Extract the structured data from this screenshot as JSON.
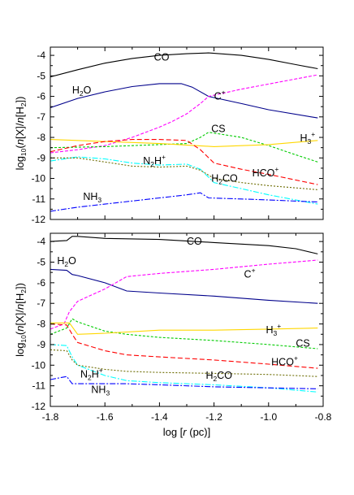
{
  "chart_data": [
    {
      "type": "line",
      "panel": "top",
      "xlabel": "",
      "ylabel": "log10(n[X]/n[H2])",
      "xlim": [
        -1.8,
        -0.8
      ],
      "ylim": [
        -12,
        -3.6
      ],
      "x_ticks": [
        -1.8,
        -1.6,
        -1.4,
        -1.2,
        -1.0,
        -0.8
      ],
      "y_ticks": [
        -12,
        -11,
        -10,
        -9,
        -8,
        -7,
        -6,
        -5,
        -4
      ],
      "x_tick_labels": [
        "",
        "",
        "",
        "",
        "",
        ""
      ],
      "y_tick_labels": [
        "-12",
        "-11",
        "-10",
        "-9",
        "-8",
        "-7",
        "-6",
        "-5",
        "-4"
      ],
      "series": [
        {
          "name": "CO",
          "color": "#000000",
          "dash": "",
          "x": [
            -1.8,
            -1.7,
            -1.6,
            -1.5,
            -1.4,
            -1.3,
            -1.22,
            -1.1,
            -1.0,
            -0.9,
            -0.82
          ],
          "y": [
            -5.05,
            -4.7,
            -4.38,
            -4.15,
            -4.0,
            -3.92,
            -3.88,
            -4.0,
            -4.2,
            -4.45,
            -4.65
          ]
        },
        {
          "name": "H2O",
          "color": "#00008b",
          "dash": "",
          "x": [
            -1.8,
            -1.7,
            -1.6,
            -1.5,
            -1.4,
            -1.32,
            -1.28,
            -1.22,
            -1.1,
            -1.0,
            -0.82
          ],
          "y": [
            -6.55,
            -6.1,
            -5.78,
            -5.52,
            -5.38,
            -5.38,
            -5.55,
            -6.0,
            -6.35,
            -6.65,
            -7.05
          ]
        },
        {
          "name": "C+",
          "color": "#ff00ff",
          "dash": "4,2",
          "x": [
            -1.8,
            -1.7,
            -1.6,
            -1.5,
            -1.4,
            -1.35,
            -1.3,
            -1.25,
            -1.22,
            -1.1,
            -1.0,
            -0.9,
            -0.82
          ],
          "y": [
            -8.75,
            -8.6,
            -8.4,
            -8.0,
            -7.5,
            -7.2,
            -6.85,
            -6.35,
            -6.0,
            -5.65,
            -5.4,
            -5.15,
            -4.95
          ]
        },
        {
          "name": "CS",
          "color": "#00cc00",
          "dash": "3,2",
          "x": [
            -1.8,
            -1.6,
            -1.4,
            -1.3,
            -1.25,
            -1.22,
            -1.1,
            -1.0,
            -0.9,
            -0.82
          ],
          "y": [
            -8.5,
            -8.45,
            -8.35,
            -8.3,
            -8.0,
            -7.75,
            -8.0,
            -8.4,
            -8.85,
            -9.2
          ]
        },
        {
          "name": "H3+",
          "color": "#ffd700",
          "dash": "",
          "x": [
            -1.8,
            -1.6,
            -1.4,
            -1.2,
            -1.0,
            -0.82
          ],
          "y": [
            -8.1,
            -8.2,
            -8.3,
            -8.45,
            -8.35,
            -8.15
          ]
        },
        {
          "name": "HCO+",
          "color": "#ff0000",
          "dash": "6,3",
          "x": [
            -1.8,
            -1.7,
            -1.6,
            -1.5,
            -1.4,
            -1.3,
            -1.25,
            -1.2,
            -1.1,
            -1.0,
            -0.82
          ],
          "y": [
            -8.7,
            -8.4,
            -8.2,
            -8.1,
            -8.1,
            -8.15,
            -8.6,
            -9.25,
            -9.55,
            -9.8,
            -10.3
          ]
        },
        {
          "name": "N2H+",
          "color": "#00ffff",
          "dash": "7,2,2,2",
          "x": [
            -1.8,
            -1.7,
            -1.6,
            -1.5,
            -1.4,
            -1.3,
            -1.25,
            -1.2,
            -1.1,
            -1.0,
            -0.82
          ],
          "y": [
            -9.15,
            -8.95,
            -9.05,
            -9.25,
            -9.35,
            -9.3,
            -9.55,
            -10.2,
            -10.5,
            -10.8,
            -11.25
          ]
        },
        {
          "name": "H2CO",
          "color": "#6b6b00",
          "dash": "2,2",
          "x": [
            -1.8,
            -1.7,
            -1.6,
            -1.5,
            -1.4,
            -1.3,
            -1.25,
            -1.2,
            -1.1,
            -1.0,
            -0.82
          ],
          "y": [
            -9.0,
            -9.0,
            -9.2,
            -9.4,
            -9.45,
            -9.4,
            -9.6,
            -10.0,
            -10.2,
            -10.35,
            -10.55
          ]
        },
        {
          "name": "NH3",
          "color": "#0000ff",
          "dash": "7,2,2,2",
          "x": [
            -1.8,
            -1.7,
            -1.6,
            -1.5,
            -1.4,
            -1.3,
            -1.25,
            -1.22,
            -1.1,
            -1.0,
            -0.82
          ],
          "y": [
            -11.6,
            -11.4,
            -11.25,
            -11.1,
            -10.95,
            -10.8,
            -10.7,
            -10.95,
            -11.0,
            -11.05,
            -11.15
          ]
        }
      ],
      "labels": [
        {
          "series": "CO",
          "text": "CO",
          "sup": "",
          "sub": "",
          "x": -1.42,
          "y": -4.25
        },
        {
          "series": "H2O",
          "text": "H",
          "sub": "2",
          "tail": "O",
          "x": -1.72,
          "y": -5.85
        },
        {
          "series": "C+",
          "text": "C",
          "sup": "+",
          "x": -1.2,
          "y": -6.15
        },
        {
          "series": "CS",
          "text": "CS",
          "x": -1.21,
          "y": -7.75
        },
        {
          "series": "H3+",
          "text": "H",
          "sub": "3",
          "sup": "+",
          "x": -0.885,
          "y": -8.2
        },
        {
          "series": "N2H+",
          "text": "N",
          "sub": "2",
          "tail": "H",
          "sup": "+",
          "x": -1.46,
          "y": -9.3
        },
        {
          "series": "H2CO",
          "text": "H",
          "sub": "2",
          "tail": "CO",
          "x": -1.21,
          "y": -10.15
        },
        {
          "series": "HCO+",
          "text": "HCO",
          "sup": "+",
          "x": -1.06,
          "y": -9.9
        },
        {
          "series": "NH3",
          "text": "NH",
          "sub": "3",
          "x": -1.68,
          "y": -11.05
        }
      ]
    },
    {
      "type": "line",
      "panel": "bottom",
      "xlabel": "log [r (pc)]",
      "ylabel": "log10(n[X]/n[H2])",
      "xlim": [
        -1.8,
        -0.8
      ],
      "ylim": [
        -12,
        -3.6
      ],
      "x_ticks": [
        -1.8,
        -1.6,
        -1.4,
        -1.2,
        -1.0,
        -0.8
      ],
      "y_ticks": [
        -12,
        -11,
        -10,
        -9,
        -8,
        -7,
        -6,
        -5,
        -4
      ],
      "x_tick_labels": [
        "-1.8",
        "-1.6",
        "-1.4",
        "-1.2",
        "-1.0",
        "-0.8"
      ],
      "y_tick_labels": [
        "-12",
        "-11",
        "-10",
        "-9",
        "-8",
        "-7",
        "-6",
        "-5",
        "-4"
      ],
      "series": [
        {
          "name": "CO",
          "color": "#000000",
          "dash": "",
          "x": [
            -1.8,
            -1.74,
            -1.72,
            -1.7,
            -1.6,
            -1.4,
            -1.2,
            -1.0,
            -0.9,
            -0.82
          ],
          "y": [
            -4.0,
            -3.95,
            -3.75,
            -3.75,
            -3.85,
            -3.9,
            -4.05,
            -4.2,
            -4.35,
            -4.6
          ]
        },
        {
          "name": "H2O",
          "color": "#00008b",
          "dash": "",
          "x": [
            -1.8,
            -1.74,
            -1.72,
            -1.7,
            -1.6,
            -1.52,
            -1.4,
            -1.2,
            -1.0,
            -0.82
          ],
          "y": [
            -5.35,
            -5.4,
            -5.6,
            -5.65,
            -6.0,
            -6.4,
            -6.5,
            -6.65,
            -6.85,
            -7.0
          ]
        },
        {
          "name": "C+",
          "color": "#ff00ff",
          "dash": "4,2",
          "x": [
            -1.8,
            -1.75,
            -1.73,
            -1.7,
            -1.6,
            -1.52,
            -1.4,
            -1.2,
            -1.0,
            -0.82
          ],
          "y": [
            -8.25,
            -8.0,
            -7.4,
            -6.9,
            -6.3,
            -5.7,
            -5.55,
            -5.35,
            -5.1,
            -4.9
          ]
        },
        {
          "name": "CS",
          "color": "#00cc00",
          "dash": "3,2",
          "x": [
            -1.8,
            -1.74,
            -1.72,
            -1.7,
            -1.6,
            -1.52,
            -1.4,
            -1.2,
            -1.0,
            -0.82
          ],
          "y": [
            -8.5,
            -8.2,
            -7.75,
            -7.9,
            -8.35,
            -8.5,
            -8.65,
            -8.8,
            -9.0,
            -9.2
          ]
        },
        {
          "name": "H3+",
          "color": "#ffd700",
          "dash": "",
          "x": [
            -1.8,
            -1.73,
            -1.7,
            -1.6,
            -1.4,
            -1.2,
            -1.0,
            -0.82
          ],
          "y": [
            -7.95,
            -7.95,
            -8.5,
            -8.45,
            -8.3,
            -8.3,
            -8.25,
            -8.2
          ]
        },
        {
          "name": "HCO+",
          "color": "#ff0000",
          "dash": "6,3",
          "x": [
            -1.8,
            -1.74,
            -1.72,
            -1.7,
            -1.6,
            -1.52,
            -1.4,
            -1.2,
            -1.0,
            -0.82
          ],
          "y": [
            -8.0,
            -8.05,
            -8.5,
            -8.9,
            -9.3,
            -9.5,
            -9.6,
            -9.75,
            -9.95,
            -10.15
          ]
        },
        {
          "name": "N2H+",
          "color": "#00ffff",
          "dash": "7,2,2,2",
          "x": [
            -1.8,
            -1.74,
            -1.72,
            -1.7,
            -1.6,
            -1.52,
            -1.4,
            -1.2,
            -1.0,
            -0.82
          ],
          "y": [
            -9.0,
            -9.05,
            -9.6,
            -10.0,
            -10.5,
            -10.75,
            -10.85,
            -10.95,
            -11.1,
            -11.3
          ]
        },
        {
          "name": "H2CO",
          "color": "#6b6b00",
          "dash": "2,2",
          "x": [
            -1.8,
            -1.74,
            -1.72,
            -1.7,
            -1.6,
            -1.52,
            -1.4,
            -1.2,
            -1.0,
            -0.82
          ],
          "y": [
            -9.25,
            -9.3,
            -9.75,
            -10.0,
            -10.2,
            -10.3,
            -10.35,
            -10.4,
            -10.45,
            -10.55
          ]
        },
        {
          "name": "NH3",
          "color": "#0000ff",
          "dash": "7,2,2,2",
          "x": [
            -1.8,
            -1.74,
            -1.72,
            -1.7,
            -1.6,
            -1.52,
            -1.4,
            -1.2,
            -1.0,
            -0.82
          ],
          "y": [
            -10.7,
            -10.55,
            -10.9,
            -10.9,
            -10.9,
            -10.9,
            -10.95,
            -11.05,
            -11.1,
            -11.15
          ]
        }
      ],
      "labels": [
        {
          "series": "CO",
          "text": "CO",
          "x": -1.3,
          "y": -4.15
        },
        {
          "series": "H2O",
          "text": "H",
          "sub": "2",
          "tail": "O",
          "x": -1.775,
          "y": -5.1
        },
        {
          "series": "C+",
          "text": "C",
          "sup": "+",
          "x": -1.09,
          "y": -5.75
        },
        {
          "series": "H3+",
          "text": "H",
          "sub": "3",
          "sup": "+",
          "x": -1.01,
          "y": -8.45
        },
        {
          "series": "CS",
          "text": "CS",
          "x": -0.9,
          "y": -9.1
        },
        {
          "series": "HCO+",
          "text": "HCO",
          "sup": "+",
          "x": -0.99,
          "y": -10.0
        },
        {
          "series": "H2CO",
          "text": "H",
          "sub": "2",
          "tail": "CO",
          "x": -1.23,
          "y": -10.65
        },
        {
          "series": "N2H+",
          "text": "N",
          "sub": "2",
          "tail": "H",
          "sup": "+",
          "x": -1.69,
          "y": -10.6
        },
        {
          "series": "NH3",
          "text": "NH",
          "sub": "3",
          "x": -1.65,
          "y": -11.35
        }
      ]
    }
  ]
}
